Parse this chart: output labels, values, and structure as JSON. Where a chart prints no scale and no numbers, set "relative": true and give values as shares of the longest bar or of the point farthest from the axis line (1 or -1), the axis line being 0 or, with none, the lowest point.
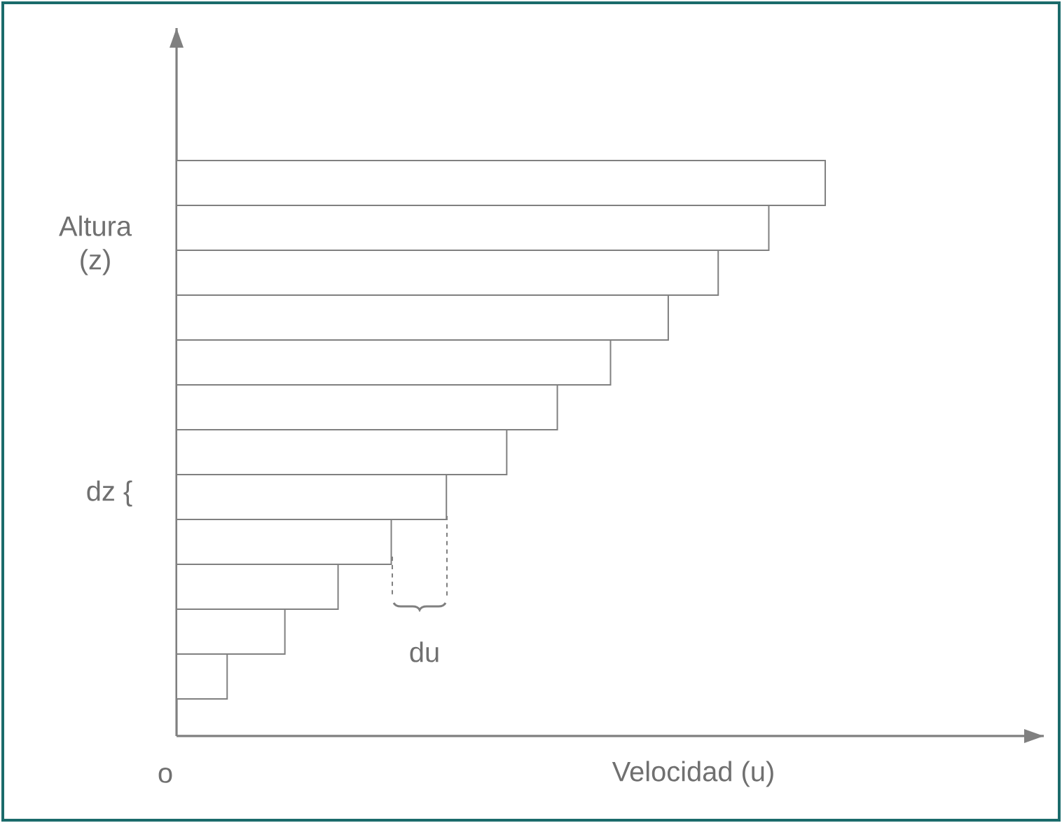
{
  "chart_data": {
    "type": "bar",
    "orientation": "horizontal",
    "relative": true,
    "xlabel": "Velocidad (u)",
    "ylabel": "Altura (z)",
    "categories": [
      null,
      null,
      null,
      null,
      null,
      null,
      null,
      null,
      null,
      null,
      null,
      null
    ],
    "values": [
      1,
      0.913,
      0.835,
      0.758,
      0.669,
      0.587,
      0.509,
      0.416,
      0.331,
      0.249,
      0.167,
      0.078
    ],
    "color": "#ffffff",
    "annotations": [
      "o",
      "dz {",
      "du"
    ]
  }
}
